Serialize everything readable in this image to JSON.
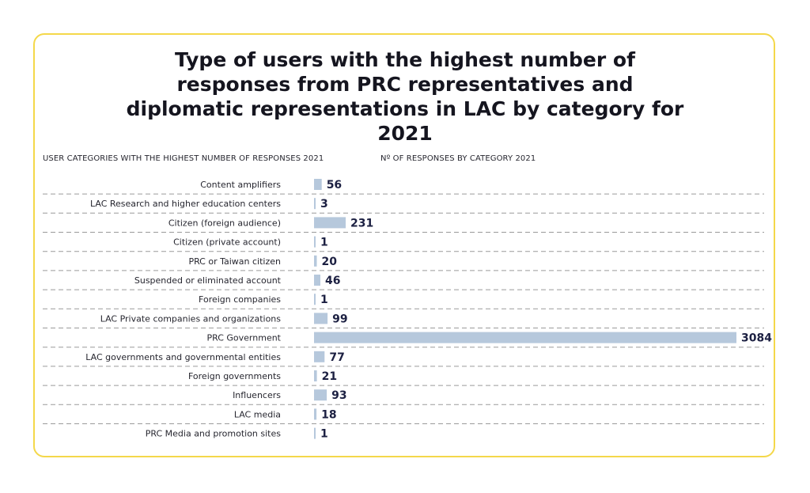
{
  "chart_data": {
    "type": "bar",
    "orientation": "horizontal",
    "title": "Type of users with the highest number of responses from PRC representatives and diplomatic representations in LAC by category for 2021",
    "xlabel": "Nº OF RESPONSES BY CATEGORY 2021",
    "ylabel": "USER CATEGORIES WITH THE HIGHEST NUMBER OF RESPONSES 2021",
    "xlim": [
      0,
      3084
    ],
    "grid": false,
    "categories": [
      "Content amplifiers",
      "LAC Research and higher education centers",
      "Citizen (foreign audience)",
      "Citizen (private account)",
      "PRC or Taiwan citizen",
      "Suspended or eliminated account",
      "Foreign companies",
      "LAC Private companies and organizations",
      "PRC Government",
      "LAC governments and governmental entities",
      "Foreign governments",
      "Influencers",
      "LAC media",
      "PRC Media and promotion sites"
    ],
    "values": [
      56,
      3,
      231,
      1,
      20,
      46,
      1,
      99,
      3084,
      77,
      21,
      93,
      18,
      1
    ],
    "colors": {
      "bar": "#b6c8dc",
      "value": "#1c2042",
      "divider": "#9a9a9a",
      "border": "#f4d84a"
    }
  }
}
